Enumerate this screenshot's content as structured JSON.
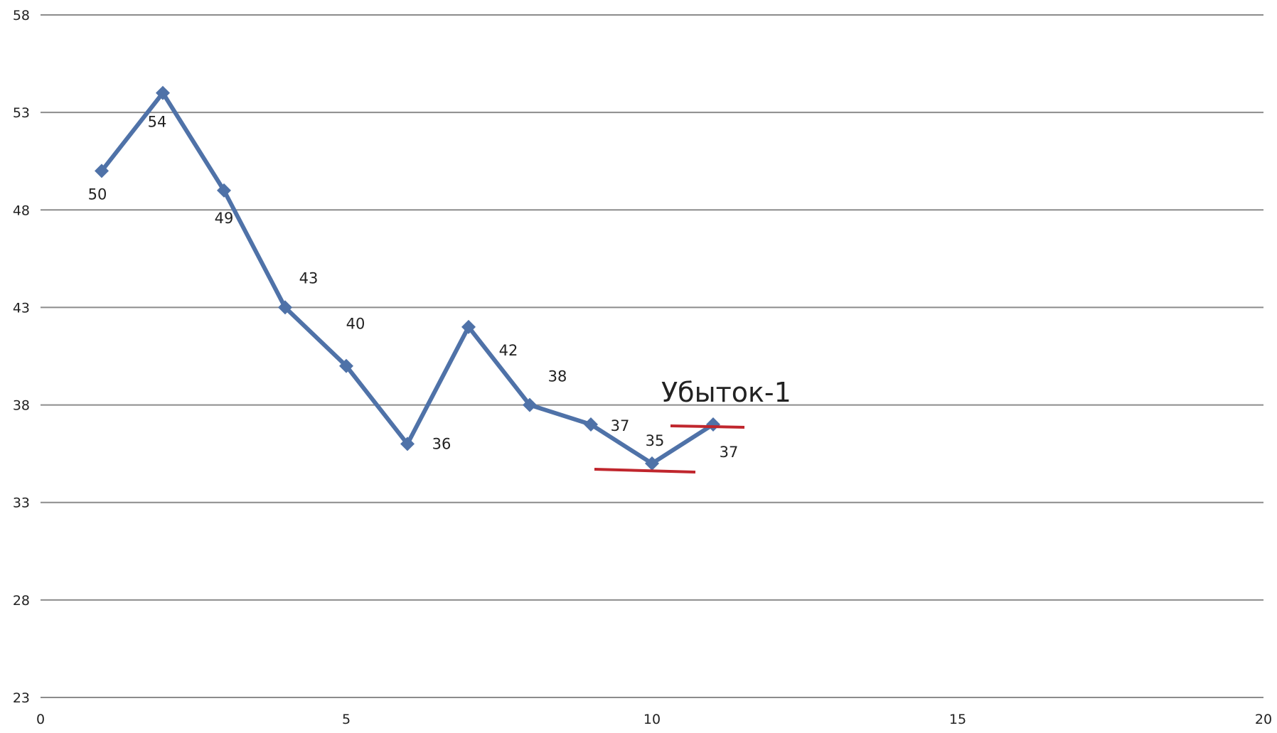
{
  "chart_data": {
    "type": "line",
    "title": "",
    "xlabel": "",
    "ylabel": "",
    "xlim": [
      0,
      20
    ],
    "ylim": [
      23,
      58
    ],
    "x_ticks": [
      "0",
      "5",
      "10",
      "15",
      "20"
    ],
    "y_ticks": [
      "58",
      "53",
      "48",
      "43",
      "38",
      "33",
      "28",
      "23"
    ],
    "grid": "horizontal",
    "legend": "none",
    "series": [
      {
        "x": [
          1,
          2,
          3,
          4,
          5,
          6,
          7,
          8,
          9,
          10,
          11
        ],
        "y": [
          50,
          54,
          49,
          43,
          40,
          36,
          42,
          38,
          37,
          35,
          37
        ],
        "color": "#4f72a8",
        "marker": "diamond",
        "data_labels": [
          "50",
          "54",
          "49",
          "43",
          "40",
          "36",
          "42",
          "38",
          "37",
          "35",
          "37"
        ]
      }
    ],
    "annotations": [
      {
        "text": "Убыток-1",
        "color": "#222222"
      }
    ],
    "reference_lines_color": "#c0262d"
  }
}
